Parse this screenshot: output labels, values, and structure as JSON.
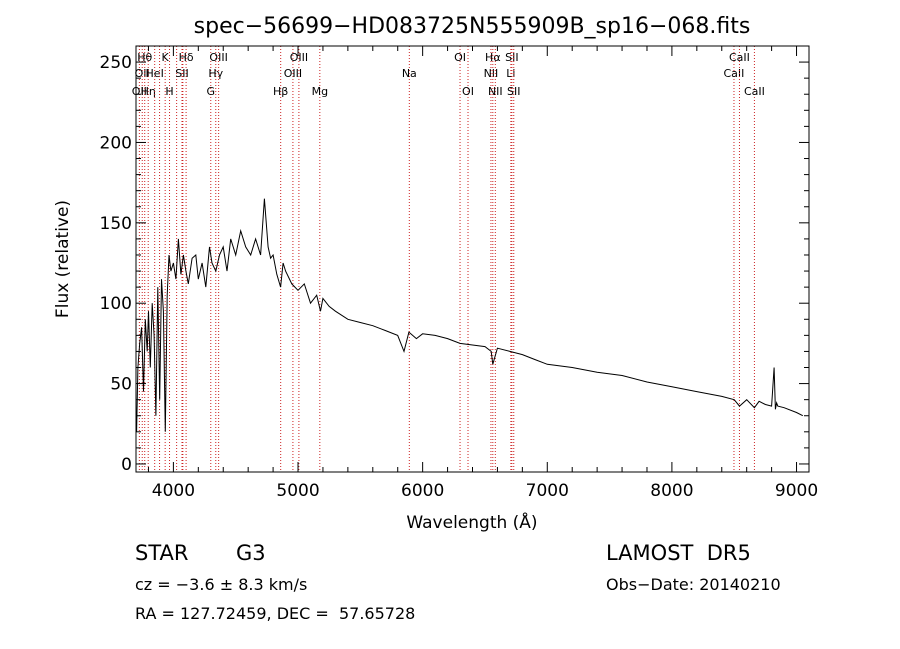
{
  "chart_data": {
    "type": "line",
    "title": "spec−56699−HD083725N555909B_sp16−068.fits",
    "xlabel": "Wavelength (Å)",
    "ylabel": "Flux (relative)",
    "xlim": [
      3700,
      9100
    ],
    "ylim": [
      -5,
      260
    ],
    "x_ticks": [
      4000,
      5000,
      6000,
      7000,
      8000,
      9000
    ],
    "y_ticks": [
      0,
      50,
      100,
      150,
      200,
      250
    ],
    "line_color": "#000000",
    "marker_color": "#cc2222",
    "series": [
      {
        "x": [
          3705,
          3715,
          3730,
          3745,
          3760,
          3775,
          3790,
          3800,
          3815,
          3830,
          3845,
          3860,
          3875,
          3890,
          3905,
          3920,
          3935,
          3950,
          3965,
          3980,
          4000,
          4020,
          4040,
          4060,
          4080,
          4100,
          4120,
          4150,
          4180,
          4200,
          4230,
          4260,
          4290,
          4310,
          4340,
          4370,
          4400,
          4430,
          4460,
          4500,
          4540,
          4580,
          4620,
          4660,
          4700,
          4730,
          4760,
          4780,
          4800,
          4830,
          4860,
          4880,
          4900,
          4950,
          5000,
          5050,
          5100,
          5150,
          5180,
          5200,
          5250,
          5300,
          5400,
          5500,
          5600,
          5700,
          5800,
          5850,
          5890,
          5950,
          6000,
          6100,
          6200,
          6300,
          6400,
          6500,
          6550,
          6563,
          6600,
          6700,
          6800,
          6900,
          7000,
          7200,
          7400,
          7600,
          7800,
          8000,
          8200,
          8400,
          8500,
          8542,
          8600,
          8662,
          8700,
          8750,
          8800,
          8820,
          8830,
          8840,
          8850,
          8900,
          9000,
          9050
        ],
        "y": [
          20,
          60,
          75,
          85,
          45,
          90,
          70,
          95,
          60,
          100,
          80,
          30,
          110,
          40,
          115,
          95,
          20,
          105,
          130,
          120,
          125,
          115,
          140,
          118,
          130,
          120,
          112,
          128,
          130,
          115,
          125,
          110,
          135,
          125,
          120,
          130,
          135,
          120,
          140,
          130,
          145,
          135,
          130,
          140,
          130,
          165,
          135,
          128,
          130,
          118,
          110,
          125,
          120,
          112,
          108,
          112,
          100,
          105,
          95,
          103,
          98,
          95,
          90,
          88,
          86,
          83,
          80,
          70,
          82,
          78,
          81,
          80,
          78,
          75,
          74,
          73,
          70,
          62,
          72,
          70,
          68,
          65,
          62,
          60,
          57,
          55,
          51,
          48,
          45,
          42,
          40,
          36,
          40,
          35,
          39,
          37,
          36,
          60,
          34,
          38,
          36,
          35,
          32,
          30
        ]
      }
    ],
    "line_markers": [
      {
        "x": 3727,
        "label": "OII",
        "row": 2
      },
      {
        "x": 3750,
        "label": "OII",
        "row": 1
      },
      {
        "x": 3770,
        "label": "Hθ",
        "row": 0
      },
      {
        "x": 3798,
        "label": "Hη",
        "row": 2
      },
      {
        "x": 3850,
        "label": "HeI",
        "row": 1
      },
      {
        "x": 3889,
        "label": "",
        "row": -1
      },
      {
        "x": 3934,
        "label": "K",
        "row": 0
      },
      {
        "x": 3969,
        "label": "H",
        "row": 2
      },
      {
        "x": 4026,
        "label": "",
        "row": -1
      },
      {
        "x": 4069,
        "label": "SII",
        "row": 1
      },
      {
        "x": 4076,
        "label": "",
        "row": -1
      },
      {
        "x": 4102,
        "label": "Hδ",
        "row": 0
      },
      {
        "x": 4300,
        "label": "G",
        "row": 2
      },
      {
        "x": 4340,
        "label": "Hγ",
        "row": 1
      },
      {
        "x": 4363,
        "label": "OIII",
        "row": 0
      },
      {
        "x": 4861,
        "label": "Hβ",
        "row": 2
      },
      {
        "x": 4959,
        "label": "OIII",
        "row": 1
      },
      {
        "x": 5007,
        "label": "OIII",
        "row": 0
      },
      {
        "x": 5175,
        "label": "Mg",
        "row": 2
      },
      {
        "x": 5893,
        "label": "Na",
        "row": 1
      },
      {
        "x": 6300,
        "label": "OI",
        "row": 0
      },
      {
        "x": 6364,
        "label": "OI",
        "row": 2
      },
      {
        "x": 6548,
        "label": "NII",
        "row": 1
      },
      {
        "x": 6563,
        "label": "Hα",
        "row": 0
      },
      {
        "x": 6583,
        "label": "NII",
        "row": 2
      },
      {
        "x": 6708,
        "label": "Li",
        "row": 1
      },
      {
        "x": 6716,
        "label": "SII",
        "row": 0
      },
      {
        "x": 6731,
        "label": "SII",
        "row": 2
      },
      {
        "x": 8498,
        "label": "CaII",
        "row": 1
      },
      {
        "x": 8542,
        "label": "CaII",
        "row": 0
      },
      {
        "x": 8662,
        "label": "CaII",
        "row": 2
      }
    ]
  },
  "info": {
    "object_type": "STAR",
    "subclass": "G3",
    "survey": "LAMOST  DR5",
    "redshift": "cz = −3.6 ± 8.3 km/s",
    "obs_date": "Obs−Date: 20140210",
    "coords": "RA = 127.72459, DEC =  57.65728"
  }
}
